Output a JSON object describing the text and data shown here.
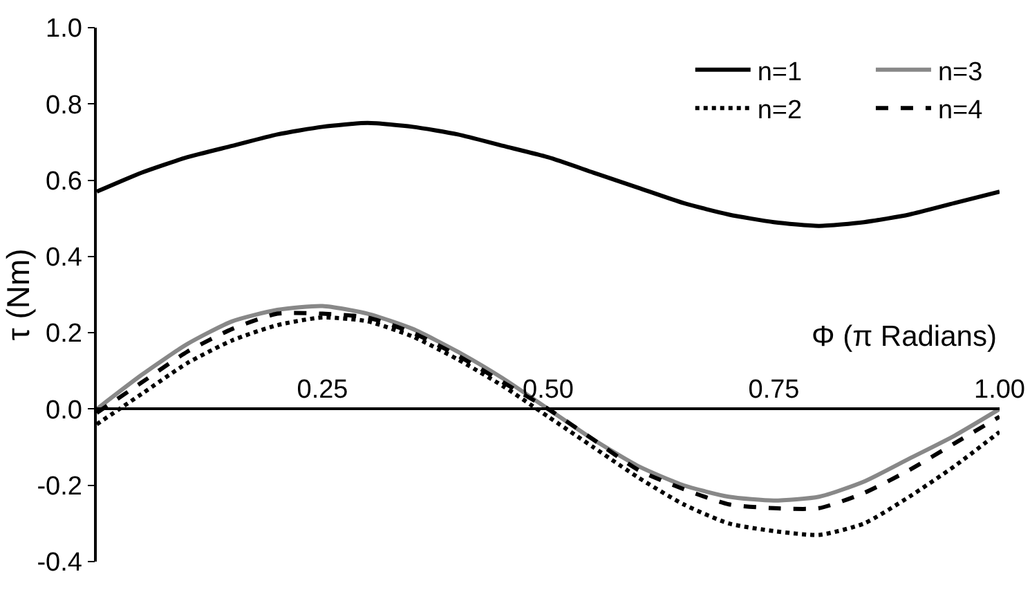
{
  "chart_data": {
    "type": "line",
    "xlabel": "Φ (π Radians)",
    "ylabel": "τ (Nm)",
    "x": [
      0,
      0.05,
      0.1,
      0.15,
      0.2,
      0.25,
      0.3,
      0.35,
      0.4,
      0.45,
      0.5,
      0.55,
      0.6,
      0.65,
      0.7,
      0.75,
      0.8,
      0.85,
      0.9,
      0.95,
      1
    ],
    "series": [
      {
        "name": "n=1",
        "color": "#000000",
        "line_style": "solid",
        "values": [
          0.57,
          0.62,
          0.66,
          0.69,
          0.72,
          0.74,
          0.75,
          0.74,
          0.72,
          0.69,
          0.66,
          0.62,
          0.58,
          0.54,
          0.51,
          0.49,
          0.48,
          0.49,
          0.51,
          0.54,
          0.57
        ]
      },
      {
        "name": "n=3",
        "color": "#888888",
        "line_style": "solid",
        "values": [
          0,
          0.09,
          0.17,
          0.23,
          0.26,
          0.27,
          0.25,
          0.21,
          0.15,
          0.08,
          0,
          -0.08,
          -0.15,
          -0.2,
          -0.23,
          -0.24,
          -0.23,
          -0.19,
          -0.13,
          -0.07,
          0
        ]
      },
      {
        "name": "n=2",
        "color": "#000000",
        "line_style": "dotted",
        "values": [
          -0.04,
          0.04,
          0.12,
          0.18,
          0.22,
          0.24,
          0.23,
          0.19,
          0.13,
          0.06,
          -0.02,
          -0.1,
          -0.18,
          -0.25,
          -0.3,
          -0.32,
          -0.33,
          -0.3,
          -0.23,
          -0.15,
          -0.06
        ]
      },
      {
        "name": "n=4",
        "color": "#000000",
        "line_style": "dashed",
        "values": [
          -0.01,
          0.07,
          0.15,
          0.21,
          0.25,
          0.25,
          0.24,
          0.2,
          0.14,
          0.07,
          0,
          -0.08,
          -0.16,
          -0.21,
          -0.25,
          -0.26,
          -0.26,
          -0.22,
          -0.16,
          -0.09,
          -0.02
        ]
      }
    ],
    "xlim": [
      0,
      1
    ],
    "xticks": [
      0.25,
      {
        "value": 0.5,
        "label": "0.50"
      },
      0.75,
      {
        "value": 1,
        "label": "1.00"
      }
    ],
    "ylim": [
      -0.4,
      1
    ],
    "yticks": [
      {
        "value": -0.4,
        "label": "-0.4"
      },
      {
        "value": -0.2,
        "label": "-0.2"
      },
      {
        "value": 0,
        "label": "0.0"
      },
      0.2,
      0.4,
      0.6,
      0.8,
      {
        "value": 1,
        "label": "1.0"
      }
    ],
    "grid": false,
    "legend": "top right",
    "marker": "none"
  }
}
